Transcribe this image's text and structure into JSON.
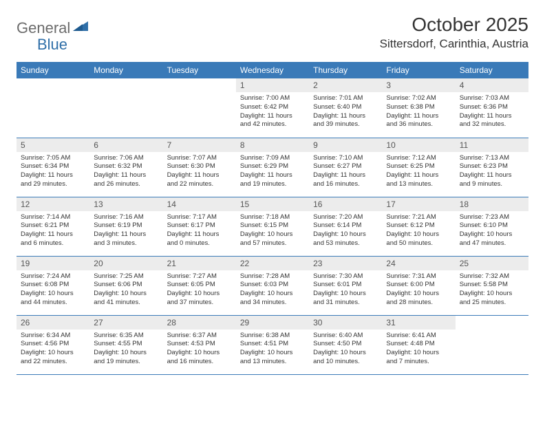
{
  "brand": {
    "part1": "General",
    "part2": "Blue"
  },
  "title": "October 2025",
  "location": "Sittersdorf, Carinthia, Austria",
  "colors": {
    "header_bg": "#3a7ab8",
    "header_text": "#ffffff",
    "daynum_bg": "#ececec",
    "border": "#3a7ab8",
    "brand_gray": "#6b6b6b",
    "brand_blue": "#2f6fa8"
  },
  "typography": {
    "title_fontsize": 28,
    "location_fontsize": 17,
    "header_fontsize": 12,
    "daynum_fontsize": 12,
    "daytext_fontsize": 9.5
  },
  "weekdays": [
    "Sunday",
    "Monday",
    "Tuesday",
    "Wednesday",
    "Thursday",
    "Friday",
    "Saturday"
  ],
  "weeks": [
    [
      {
        "day": "",
        "sunrise": "",
        "sunset": "",
        "daylight": ""
      },
      {
        "day": "",
        "sunrise": "",
        "sunset": "",
        "daylight": ""
      },
      {
        "day": "",
        "sunrise": "",
        "sunset": "",
        "daylight": ""
      },
      {
        "day": "1",
        "sunrise": "Sunrise: 7:00 AM",
        "sunset": "Sunset: 6:42 PM",
        "daylight": "Daylight: 11 hours and 42 minutes."
      },
      {
        "day": "2",
        "sunrise": "Sunrise: 7:01 AM",
        "sunset": "Sunset: 6:40 PM",
        "daylight": "Daylight: 11 hours and 39 minutes."
      },
      {
        "day": "3",
        "sunrise": "Sunrise: 7:02 AM",
        "sunset": "Sunset: 6:38 PM",
        "daylight": "Daylight: 11 hours and 36 minutes."
      },
      {
        "day": "4",
        "sunrise": "Sunrise: 7:03 AM",
        "sunset": "Sunset: 6:36 PM",
        "daylight": "Daylight: 11 hours and 32 minutes."
      }
    ],
    [
      {
        "day": "5",
        "sunrise": "Sunrise: 7:05 AM",
        "sunset": "Sunset: 6:34 PM",
        "daylight": "Daylight: 11 hours and 29 minutes."
      },
      {
        "day": "6",
        "sunrise": "Sunrise: 7:06 AM",
        "sunset": "Sunset: 6:32 PM",
        "daylight": "Daylight: 11 hours and 26 minutes."
      },
      {
        "day": "7",
        "sunrise": "Sunrise: 7:07 AM",
        "sunset": "Sunset: 6:30 PM",
        "daylight": "Daylight: 11 hours and 22 minutes."
      },
      {
        "day": "8",
        "sunrise": "Sunrise: 7:09 AM",
        "sunset": "Sunset: 6:29 PM",
        "daylight": "Daylight: 11 hours and 19 minutes."
      },
      {
        "day": "9",
        "sunrise": "Sunrise: 7:10 AM",
        "sunset": "Sunset: 6:27 PM",
        "daylight": "Daylight: 11 hours and 16 minutes."
      },
      {
        "day": "10",
        "sunrise": "Sunrise: 7:12 AM",
        "sunset": "Sunset: 6:25 PM",
        "daylight": "Daylight: 11 hours and 13 minutes."
      },
      {
        "day": "11",
        "sunrise": "Sunrise: 7:13 AM",
        "sunset": "Sunset: 6:23 PM",
        "daylight": "Daylight: 11 hours and 9 minutes."
      }
    ],
    [
      {
        "day": "12",
        "sunrise": "Sunrise: 7:14 AM",
        "sunset": "Sunset: 6:21 PM",
        "daylight": "Daylight: 11 hours and 6 minutes."
      },
      {
        "day": "13",
        "sunrise": "Sunrise: 7:16 AM",
        "sunset": "Sunset: 6:19 PM",
        "daylight": "Daylight: 11 hours and 3 minutes."
      },
      {
        "day": "14",
        "sunrise": "Sunrise: 7:17 AM",
        "sunset": "Sunset: 6:17 PM",
        "daylight": "Daylight: 11 hours and 0 minutes."
      },
      {
        "day": "15",
        "sunrise": "Sunrise: 7:18 AM",
        "sunset": "Sunset: 6:15 PM",
        "daylight": "Daylight: 10 hours and 57 minutes."
      },
      {
        "day": "16",
        "sunrise": "Sunrise: 7:20 AM",
        "sunset": "Sunset: 6:14 PM",
        "daylight": "Daylight: 10 hours and 53 minutes."
      },
      {
        "day": "17",
        "sunrise": "Sunrise: 7:21 AM",
        "sunset": "Sunset: 6:12 PM",
        "daylight": "Daylight: 10 hours and 50 minutes."
      },
      {
        "day": "18",
        "sunrise": "Sunrise: 7:23 AM",
        "sunset": "Sunset: 6:10 PM",
        "daylight": "Daylight: 10 hours and 47 minutes."
      }
    ],
    [
      {
        "day": "19",
        "sunrise": "Sunrise: 7:24 AM",
        "sunset": "Sunset: 6:08 PM",
        "daylight": "Daylight: 10 hours and 44 minutes."
      },
      {
        "day": "20",
        "sunrise": "Sunrise: 7:25 AM",
        "sunset": "Sunset: 6:06 PM",
        "daylight": "Daylight: 10 hours and 41 minutes."
      },
      {
        "day": "21",
        "sunrise": "Sunrise: 7:27 AM",
        "sunset": "Sunset: 6:05 PM",
        "daylight": "Daylight: 10 hours and 37 minutes."
      },
      {
        "day": "22",
        "sunrise": "Sunrise: 7:28 AM",
        "sunset": "Sunset: 6:03 PM",
        "daylight": "Daylight: 10 hours and 34 minutes."
      },
      {
        "day": "23",
        "sunrise": "Sunrise: 7:30 AM",
        "sunset": "Sunset: 6:01 PM",
        "daylight": "Daylight: 10 hours and 31 minutes."
      },
      {
        "day": "24",
        "sunrise": "Sunrise: 7:31 AM",
        "sunset": "Sunset: 6:00 PM",
        "daylight": "Daylight: 10 hours and 28 minutes."
      },
      {
        "day": "25",
        "sunrise": "Sunrise: 7:32 AM",
        "sunset": "Sunset: 5:58 PM",
        "daylight": "Daylight: 10 hours and 25 minutes."
      }
    ],
    [
      {
        "day": "26",
        "sunrise": "Sunrise: 6:34 AM",
        "sunset": "Sunset: 4:56 PM",
        "daylight": "Daylight: 10 hours and 22 minutes."
      },
      {
        "day": "27",
        "sunrise": "Sunrise: 6:35 AM",
        "sunset": "Sunset: 4:55 PM",
        "daylight": "Daylight: 10 hours and 19 minutes."
      },
      {
        "day": "28",
        "sunrise": "Sunrise: 6:37 AM",
        "sunset": "Sunset: 4:53 PM",
        "daylight": "Daylight: 10 hours and 16 minutes."
      },
      {
        "day": "29",
        "sunrise": "Sunrise: 6:38 AM",
        "sunset": "Sunset: 4:51 PM",
        "daylight": "Daylight: 10 hours and 13 minutes."
      },
      {
        "day": "30",
        "sunrise": "Sunrise: 6:40 AM",
        "sunset": "Sunset: 4:50 PM",
        "daylight": "Daylight: 10 hours and 10 minutes."
      },
      {
        "day": "31",
        "sunrise": "Sunrise: 6:41 AM",
        "sunset": "Sunset: 4:48 PM",
        "daylight": "Daylight: 10 hours and 7 minutes."
      },
      {
        "day": "",
        "sunrise": "",
        "sunset": "",
        "daylight": ""
      }
    ]
  ]
}
